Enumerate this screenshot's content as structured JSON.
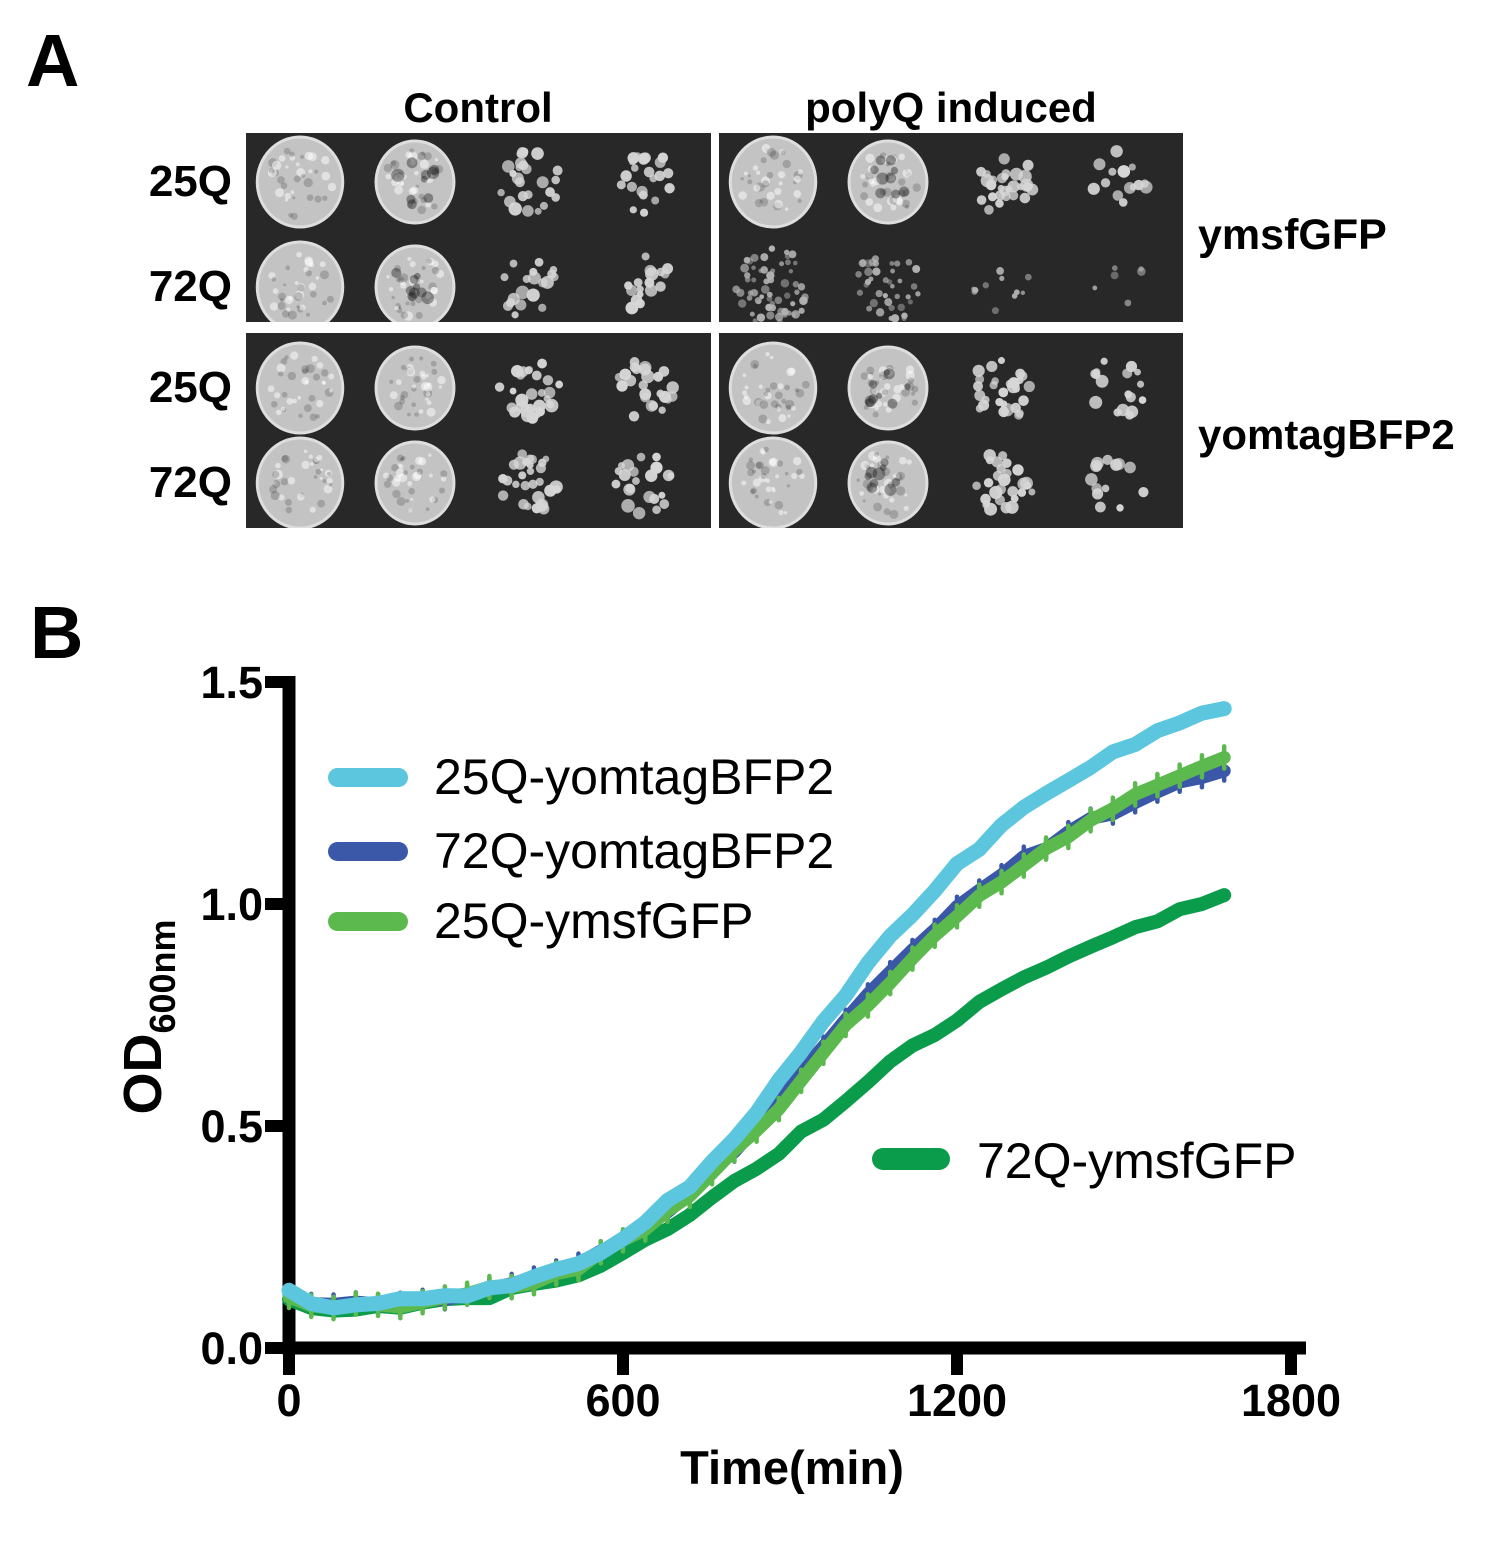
{
  "panel_a": {
    "label": "A",
    "col_headers": [
      "Control",
      "polyQ induced"
    ],
    "row_labels": [
      "25Q",
      "72Q"
    ],
    "group_labels": [
      "ymsfGFP",
      "yomtagBFP2"
    ],
    "dilution_columns": 4,
    "blocks": [
      {
        "group": "ymsfGFP",
        "condition": "Control",
        "rows": [
          {
            "label": "25Q",
            "density": [
              0.95,
              0.8,
              0.45,
              0.4
            ]
          },
          {
            "label": "72Q",
            "density": [
              0.95,
              0.75,
              0.35,
              0.3
            ]
          }
        ]
      },
      {
        "group": "ymsfGFP",
        "condition": "polyQ induced",
        "rows": [
          {
            "label": "25Q",
            "density": [
              0.95,
              0.8,
              0.5,
              0.25
            ]
          },
          {
            "label": "72Q",
            "density": [
              0.45,
              0.28,
              0.08,
              0.04
            ],
            "dim": true
          }
        ]
      },
      {
        "group": "yomtagBFP2",
        "condition": "Control",
        "rows": [
          {
            "label": "25Q",
            "density": [
              1.0,
              0.85,
              0.5,
              0.45
            ]
          },
          {
            "label": "72Q",
            "density": [
              0.95,
              0.85,
              0.55,
              0.4
            ]
          }
        ]
      },
      {
        "group": "yomtagBFP2",
        "condition": "polyQ induced",
        "rows": [
          {
            "label": "25Q",
            "density": [
              0.95,
              0.8,
              0.55,
              0.3
            ]
          },
          {
            "label": "72Q",
            "density": [
              0.9,
              0.75,
              0.5,
              0.25
            ]
          }
        ]
      }
    ]
  },
  "panel_b": {
    "label": "B"
  },
  "chart_data": {
    "type": "line",
    "title": "",
    "xlabel": "Time(min)",
    "ylabel": "OD",
    "ylabel_subscript": "600nm",
    "xlim": [
      0,
      1800
    ],
    "ylim": [
      0,
      1.5
    ],
    "xticks": [
      0,
      600,
      1200,
      1800
    ],
    "yticks": [
      0,
      0.5,
      1,
      1.5
    ],
    "xtick_labels": [
      "0",
      "600",
      "1200",
      "1800"
    ],
    "ytick_labels": [
      "0.0",
      "0.5",
      "1.0",
      "1.5"
    ],
    "grid": false,
    "legend_position": "upper-left-inside",
    "x_step_min": 40,
    "series": [
      {
        "name": "25Q-yomtagBFP2",
        "color": "#5bc6dd",
        "values": [
          0.13,
          0.1,
          0.095,
          0.1,
          0.1,
          0.105,
          0.11,
          0.115,
          0.125,
          0.135,
          0.145,
          0.16,
          0.175,
          0.195,
          0.22,
          0.25,
          0.285,
          0.325,
          0.37,
          0.42,
          0.475,
          0.535,
          0.6,
          0.665,
          0.73,
          0.8,
          0.865,
          0.925,
          0.98,
          1.035,
          1.085,
          1.13,
          1.17,
          1.21,
          1.245,
          1.28,
          1.31,
          1.34,
          1.365,
          1.39,
          1.41,
          1.43,
          1.44
        ]
      },
      {
        "name": "72Q-yomtagBFP2",
        "color": "#3b57a7",
        "error": 0.022,
        "values": [
          0.12,
          0.1,
          0.095,
          0.1,
          0.1,
          0.105,
          0.11,
          0.115,
          0.12,
          0.13,
          0.14,
          0.155,
          0.17,
          0.19,
          0.215,
          0.245,
          0.275,
          0.31,
          0.35,
          0.395,
          0.445,
          0.5,
          0.555,
          0.615,
          0.675,
          0.735,
          0.79,
          0.845,
          0.895,
          0.945,
          0.99,
          1.03,
          1.065,
          1.1,
          1.13,
          1.16,
          1.185,
          1.21,
          1.235,
          1.255,
          1.27,
          1.285,
          1.3
        ]
      },
      {
        "name": "25Q-ymsfGFP",
        "color": "#5cb94e",
        "error": 0.025,
        "values": [
          0.115,
          0.095,
          0.09,
          0.095,
          0.1,
          0.1,
          0.105,
          0.11,
          0.12,
          0.13,
          0.14,
          0.15,
          0.165,
          0.185,
          0.21,
          0.24,
          0.27,
          0.305,
          0.345,
          0.39,
          0.44,
          0.49,
          0.545,
          0.6,
          0.66,
          0.72,
          0.775,
          0.83,
          0.88,
          0.93,
          0.975,
          1.015,
          1.055,
          1.09,
          1.125,
          1.155,
          1.185,
          1.215,
          1.24,
          1.265,
          1.29,
          1.31,
          1.33
        ]
      },
      {
        "name": "72Q-ymsfGFP",
        "color": "#0a9c4b",
        "values": [
          0.11,
          0.09,
          0.085,
          0.09,
          0.09,
          0.095,
          0.1,
          0.105,
          0.11,
          0.12,
          0.13,
          0.14,
          0.155,
          0.17,
          0.19,
          0.215,
          0.24,
          0.27,
          0.3,
          0.335,
          0.37,
          0.405,
          0.44,
          0.48,
          0.52,
          0.56,
          0.6,
          0.64,
          0.675,
          0.71,
          0.745,
          0.775,
          0.805,
          0.835,
          0.86,
          0.885,
          0.905,
          0.925,
          0.945,
          0.965,
          0.985,
          1.0,
          1.02
        ]
      }
    ]
  }
}
